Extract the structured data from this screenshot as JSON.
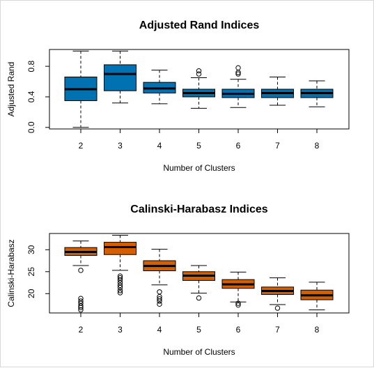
{
  "chart_data": [
    {
      "type": "box",
      "title": "Adjusted Rand Indices",
      "xlabel": "Number of Clusters",
      "ylabel": "Adjusted Rand",
      "ylim": [
        -0.02,
        1.02
      ],
      "yticks": [
        0.0,
        0.4,
        0.8
      ],
      "ytick_labels": [
        "0.0",
        "0.4",
        "0.8"
      ],
      "categories": [
        "2",
        "3",
        "4",
        "5",
        "6",
        "7",
        "8"
      ],
      "fill_color": "#0072B2",
      "boxes": [
        {
          "lower_whisker": 0.0,
          "q1": 0.35,
          "median": 0.5,
          "q3": 0.66,
          "upper_whisker": 1.0,
          "outliers": []
        },
        {
          "lower_whisker": 0.32,
          "q1": 0.48,
          "median": 0.7,
          "q3": 0.82,
          "upper_whisker": 1.0,
          "outliers": []
        },
        {
          "lower_whisker": 0.31,
          "q1": 0.45,
          "median": 0.51,
          "q3": 0.59,
          "upper_whisker": 0.75,
          "outliers": []
        },
        {
          "lower_whisker": 0.25,
          "q1": 0.4,
          "median": 0.45,
          "q3": 0.5,
          "upper_whisker": 0.65,
          "outliers": [
            0.7,
            0.74
          ]
        },
        {
          "lower_whisker": 0.26,
          "q1": 0.39,
          "median": 0.44,
          "q3": 0.5,
          "upper_whisker": 0.63,
          "outliers": [
            0.7,
            0.72,
            0.78
          ]
        },
        {
          "lower_whisker": 0.29,
          "q1": 0.39,
          "median": 0.45,
          "q3": 0.5,
          "upper_whisker": 0.66,
          "outliers": []
        },
        {
          "lower_whisker": 0.27,
          "q1": 0.39,
          "median": 0.45,
          "q3": 0.5,
          "upper_whisker": 0.61,
          "outliers": []
        }
      ]
    },
    {
      "type": "box",
      "title": "Calinski-Harabasz Indices",
      "xlabel": "Number of Clusters",
      "ylabel": "Calinski-Harabasz",
      "ylim": [
        15.6,
        33.7
      ],
      "yticks": [
        20,
        25,
        30
      ],
      "ytick_labels": [
        "20",
        "25",
        "30"
      ],
      "categories": [
        "2",
        "3",
        "4",
        "5",
        "6",
        "7",
        "8"
      ],
      "fill_color": "#D55E00",
      "boxes": [
        {
          "lower_whisker": 26.4,
          "q1": 28.7,
          "median": 29.5,
          "q3": 30.5,
          "upper_whisker": 32.0,
          "outliers": [
            25.3,
            18.9,
            18.3,
            17.8,
            17.2,
            16.8,
            16.3
          ]
        },
        {
          "lower_whisker": 25.3,
          "q1": 28.9,
          "median": 30.6,
          "q3": 31.7,
          "upper_whisker": 33.3,
          "outliers": [
            24.0,
            23.6,
            23.1,
            22.5,
            21.9,
            21.4,
            20.7,
            20.2
          ]
        },
        {
          "lower_whisker": 22.0,
          "q1": 25.2,
          "median": 26.3,
          "q3": 27.5,
          "upper_whisker": 30.1,
          "outliers": [
            20.4,
            19.3,
            18.8,
            18.3,
            17.6
          ]
        },
        {
          "lower_whisker": 20.1,
          "q1": 23.0,
          "median": 24.1,
          "q3": 25.0,
          "upper_whisker": 26.4,
          "outliers": [
            19.0
          ]
        },
        {
          "lower_whisker": 18.1,
          "q1": 21.2,
          "median": 22.1,
          "q3": 23.2,
          "upper_whisker": 24.9,
          "outliers": [
            17.8,
            17.4
          ]
        },
        {
          "lower_whisker": 17.5,
          "q1": 19.8,
          "median": 20.6,
          "q3": 21.5,
          "upper_whisker": 23.6,
          "outliers": [
            16.7
          ]
        },
        {
          "lower_whisker": 16.3,
          "q1": 18.6,
          "median": 19.6,
          "q3": 20.8,
          "upper_whisker": 22.6,
          "outliers": []
        }
      ]
    }
  ]
}
